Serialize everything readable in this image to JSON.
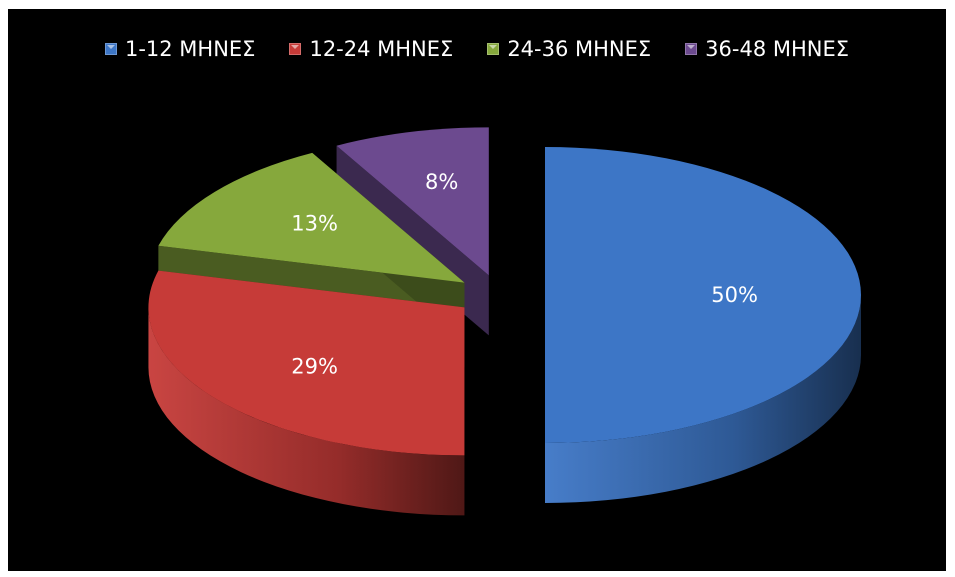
{
  "chart_data": {
    "type": "pie",
    "categories": [
      "1-12 ΜΗΝΕΣ",
      "12-24 ΜΗΝΕΣ",
      "24-36 ΜΗΝΕΣ",
      "36-48 ΜΗΝΕΣ"
    ],
    "values": [
      50,
      29,
      13,
      8
    ],
    "labels": [
      "50%",
      "29%",
      "13%",
      "8%"
    ],
    "colors": [
      "#3d76c6",
      "#c63b38",
      "#86a83c",
      "#6c4a8f"
    ],
    "legend_position": "top",
    "background": "#000000",
    "style": "3d-exploded"
  }
}
